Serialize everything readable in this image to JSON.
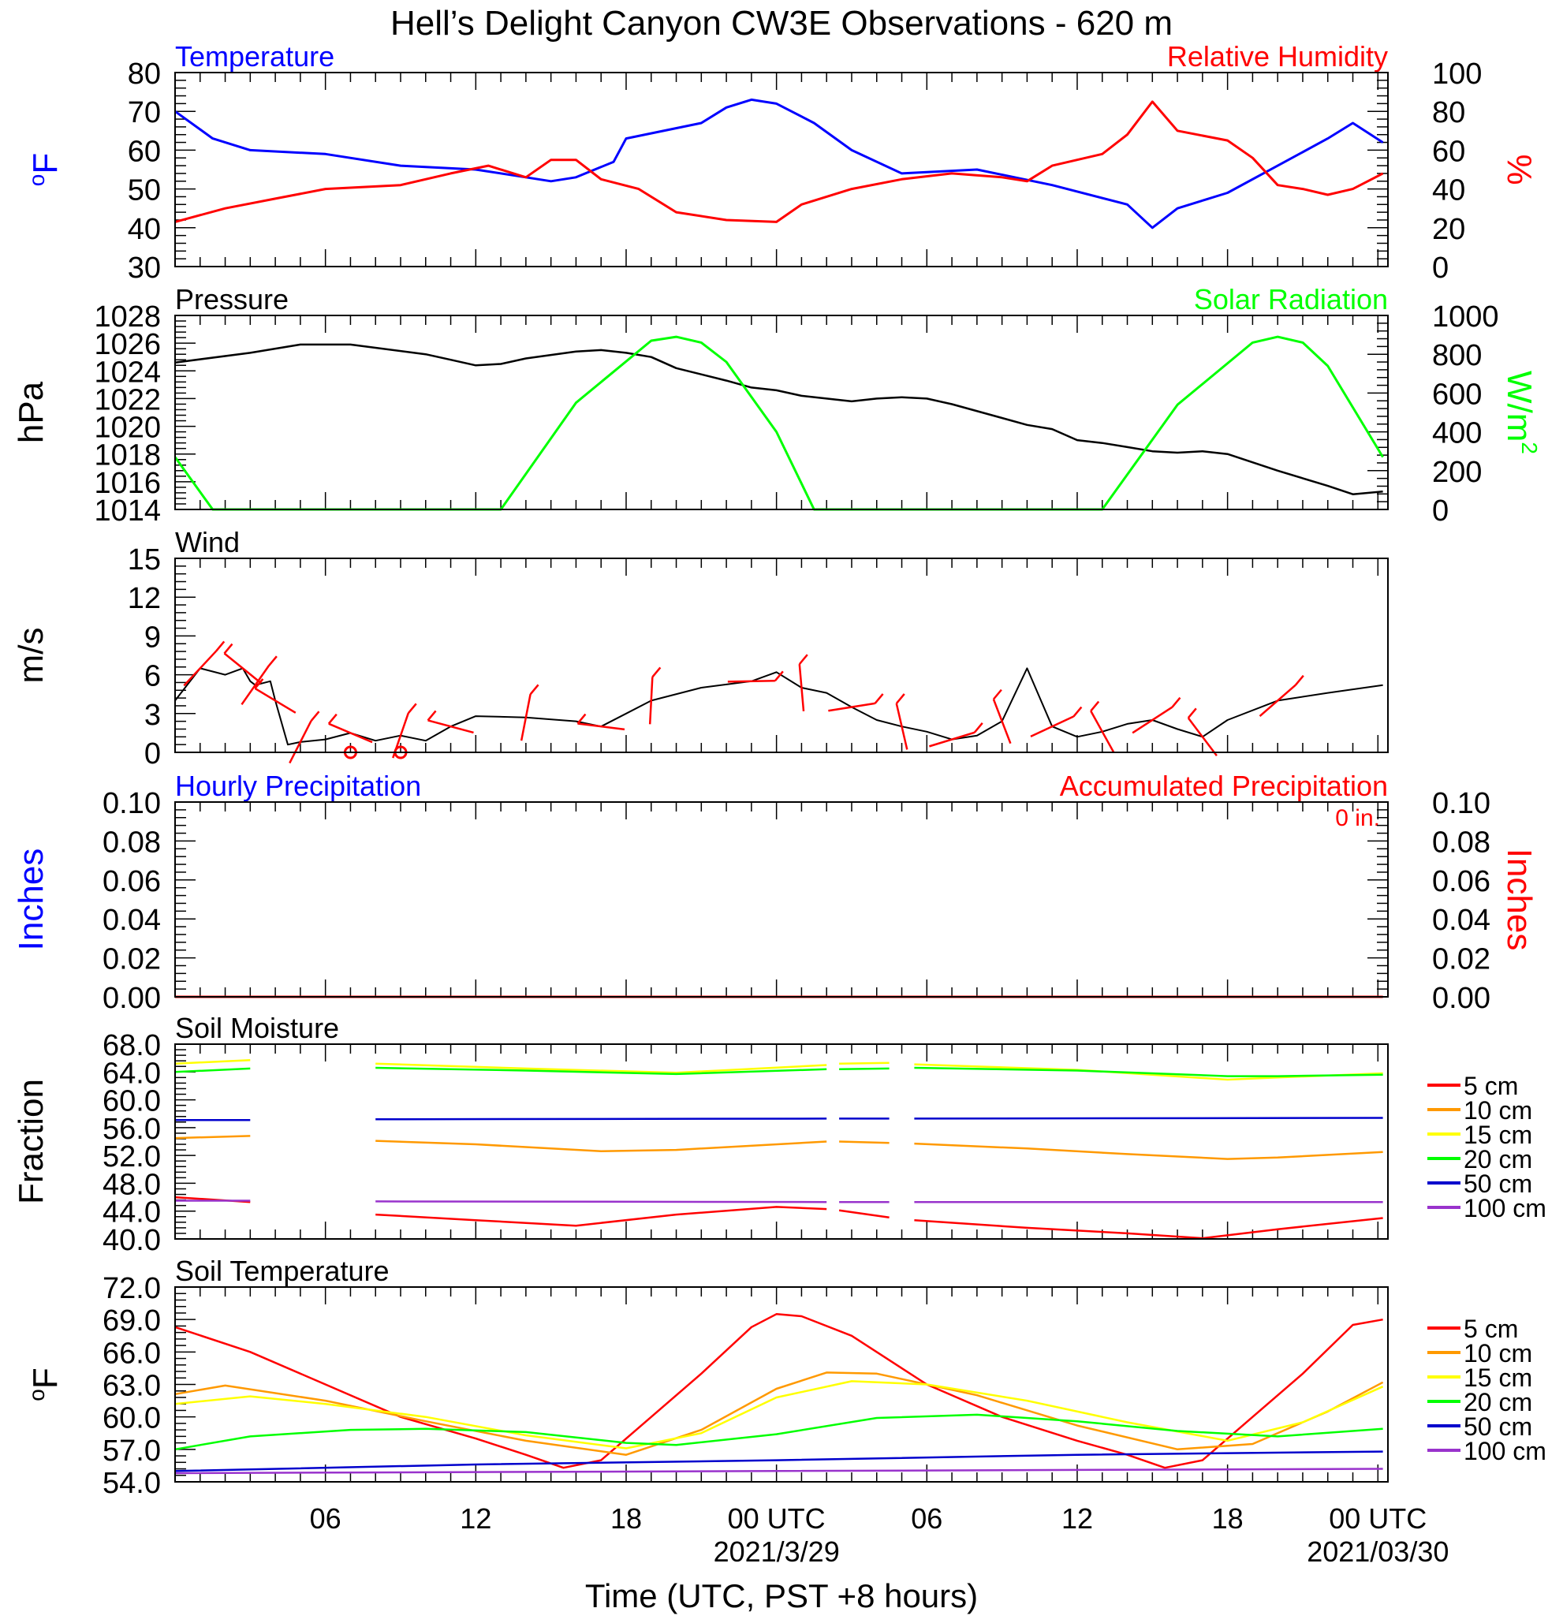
{
  "title": "Hell’s Delight Canyon CW3E Observations - 620 m",
  "xlabel": "Time (UTC, PST +8 hours)",
  "x_ticks": [
    {
      "hour": 6,
      "label": "06",
      "date": ""
    },
    {
      "hour": 12,
      "label": "12",
      "date": ""
    },
    {
      "hour": 18,
      "label": "18",
      "date": ""
    },
    {
      "hour": 24,
      "label": "00 UTC",
      "date": "2021/3/29"
    },
    {
      "hour": 30,
      "label": "06",
      "date": ""
    },
    {
      "hour": 36,
      "label": "12",
      "date": ""
    },
    {
      "hour": 42,
      "label": "18",
      "date": ""
    },
    {
      "hour": 48,
      "label": "00 UTC",
      "date": "2021/03/30"
    }
  ],
  "x_range_hours": [
    0,
    48.4
  ],
  "colors": {
    "temp": "#0000ff",
    "rh": "#ff0000",
    "pressure": "#000000",
    "solar": "#00ff00",
    "wind": "#000000",
    "barb": "#ff0000",
    "depths": [
      "#ff0000",
      "#ff9900",
      "#ffff00",
      "#00ff00",
      "#0000cc",
      "#9933cc"
    ]
  },
  "depth_labels": [
    "5 cm",
    "10 cm",
    "15 cm",
    "20 cm",
    "50 cm",
    "100 cm"
  ],
  "chart_data": [
    {
      "type": "line",
      "left_title": "Temperature",
      "right_title": "Relative Humidity",
      "ylabel": "oF",
      "ylabel_right": "%",
      "ylim": [
        30,
        80
      ],
      "ylim_right": [
        0,
        100
      ],
      "yticks": [
        "30",
        "40",
        "50",
        "60",
        "70",
        "80"
      ],
      "yticks_right": [
        "0",
        "20",
        "40",
        "60",
        "80",
        "100"
      ],
      "series": [
        {
          "name": "Temperature",
          "x": [
            0,
            1.5,
            3,
            6,
            9,
            12,
            14,
            15,
            16,
            17.5,
            18,
            21,
            22,
            23,
            24,
            25.5,
            27,
            29,
            32,
            33.5,
            35,
            38,
            39,
            40,
            42,
            44,
            46,
            47,
            48.2
          ],
          "y": [
            70,
            63,
            60,
            59,
            56,
            55,
            53,
            52,
            53,
            57,
            63,
            67,
            71,
            73,
            72,
            67,
            60,
            54,
            55,
            53,
            51,
            46,
            40,
            45,
            49,
            56,
            63,
            67,
            62
          ]
        },
        {
          "name": "Relative Humidity",
          "x": [
            0,
            2,
            4,
            6,
            9,
            11,
            12.5,
            14,
            15,
            16,
            17,
            18.5,
            20,
            22,
            24,
            25,
            27,
            29,
            31,
            33,
            34,
            35,
            37,
            38,
            39,
            40,
            42,
            43,
            44,
            45,
            46,
            47,
            48.2
          ],
          "y": [
            23,
            30,
            35,
            40,
            42,
            48,
            52,
            46,
            55,
            55,
            45,
            40,
            28,
            24,
            23,
            32,
            40,
            45,
            48,
            46,
            44,
            52,
            58,
            68,
            85,
            70,
            65,
            56,
            42,
            40,
            37,
            40,
            48
          ]
        }
      ]
    },
    {
      "type": "line",
      "left_title": "Pressure",
      "right_title": "Solar Radiation",
      "ylabel": "hPa",
      "ylabel_right": "W/m",
      "ylabel_right_sup": "2",
      "ylim": [
        1014,
        1028
      ],
      "ylim_right": [
        0,
        1000
      ],
      "yticks": [
        "1014",
        "1016",
        "1018",
        "1020",
        "1022",
        "1024",
        "1026",
        "1028"
      ],
      "yticks_right": [
        "0",
        "200",
        "400",
        "600",
        "800",
        "1000"
      ],
      "series": [
        {
          "name": "Pressure",
          "x": [
            0,
            3,
            5,
            7,
            10,
            11,
            12,
            13,
            14,
            16,
            17,
            18,
            19,
            20,
            22,
            23,
            24,
            25,
            26,
            27,
            28,
            29,
            30,
            31,
            33,
            34,
            35,
            36,
            37,
            38,
            39,
            40,
            41,
            42,
            44,
            46,
            47,
            48.2
          ],
          "y": [
            1024.6,
            1025.3,
            1025.9,
            1025.9,
            1025.2,
            1024.8,
            1024.4,
            1024.5,
            1024.9,
            1025.4,
            1025.5,
            1025.3,
            1025,
            1024.2,
            1023.3,
            1022.8,
            1022.6,
            1022.2,
            1022.0,
            1021.8,
            1022.0,
            1022.1,
            1022.0,
            1021.6,
            1020.6,
            1020.1,
            1019.8,
            1019.0,
            1018.8,
            1018.5,
            1018.2,
            1018.1,
            1018.2,
            1018.0,
            1016.8,
            1015.7,
            1015.1,
            1015.3
          ]
        },
        {
          "name": "Solar Radiation",
          "x": [
            0,
            1.5,
            13,
            16,
            19,
            20,
            21,
            22,
            24,
            25.5,
            37,
            40,
            43,
            44,
            45,
            46,
            48.2
          ],
          "y": [
            270,
            0,
            0,
            550,
            870,
            890,
            860,
            760,
            400,
            0,
            0,
            540,
            860,
            890,
            860,
            740,
            270
          ]
        }
      ]
    },
    {
      "type": "line",
      "left_title": "Wind",
      "ylabel": "m/s",
      "ylim": [
        0,
        15
      ],
      "yticks": [
        "0",
        "3",
        "6",
        "9",
        "12",
        "15"
      ],
      "series": [
        {
          "name": "Wind",
          "x": [
            0,
            1,
            2,
            2.7,
            3,
            3.2,
            3.8,
            4,
            4.5,
            5,
            6,
            7,
            8,
            9,
            10,
            11,
            12,
            14,
            16,
            17,
            18,
            19,
            21,
            23,
            24,
            25,
            26,
            27,
            28,
            29,
            30,
            31,
            32,
            33,
            34,
            35,
            36,
            37,
            38,
            39,
            40,
            41,
            42,
            44,
            46,
            48.2
          ],
          "y": [
            4,
            6.5,
            6,
            6.5,
            5.5,
            5.2,
            5.5,
            4,
            0.6,
            0.8,
            1,
            1.5,
            0.9,
            1.3,
            0.9,
            2,
            2.8,
            2.7,
            2.4,
            2,
            3,
            4,
            5,
            5.5,
            6.2,
            5,
            4.6,
            3.5,
            2.5,
            2,
            1.6,
            1,
            1.3,
            2.4,
            6.5,
            2,
            1.2,
            1.6,
            2.2,
            2.5,
            1.8,
            1.2,
            2.5,
            4,
            4.6,
            5.2
          ]
        },
        {
          "name": "Calm",
          "x": [
            7.0,
            9.0
          ],
          "y": [
            0,
            0
          ]
        }
      ]
    },
    {
      "type": "bar",
      "left_title": "Hourly Precipitation",
      "right_title": "Accumulated Precipitation",
      "annotation": "0 in.",
      "ylabel": "Inches",
      "ylabel_right": "Inches",
      "ylim": [
        0,
        0.1
      ],
      "yticks": [
        "0.00",
        "0.02",
        "0.04",
        "0.06",
        "0.08",
        "0.10"
      ],
      "yticks_right": [
        "0.00",
        "0.02",
        "0.04",
        "0.06",
        "0.08",
        "0.10"
      ],
      "series": [
        {
          "name": "Hourly Precipitation",
          "x": [
            0,
            48.2
          ],
          "y": [
            0,
            0
          ]
        },
        {
          "name": "Accumulated Precipitation",
          "x": [
            0,
            48.2
          ],
          "y": [
            0,
            0
          ]
        }
      ]
    },
    {
      "type": "line",
      "left_title": "Soil Moisture",
      "ylabel": "Fraction",
      "ylim": [
        40,
        68
      ],
      "yticks": [
        "40.0",
        "44.0",
        "48.0",
        "52.0",
        "56.0",
        "60.0",
        "64.0",
        "68.0"
      ],
      "segments": [
        [
          0,
          3.0
        ],
        [
          8.0,
          26.0
        ],
        [
          26.5,
          28.5
        ],
        [
          29.5,
          48.2
        ]
      ],
      "series": [
        {
          "name": "5 cm",
          "x": [
            0,
            3,
            8,
            12,
            16,
            20,
            24,
            26,
            26.5,
            28.5,
            29.5,
            34,
            38,
            41,
            44,
            48.2
          ],
          "y": [
            46,
            45.3,
            43.5,
            42.7,
            41.9,
            43.5,
            44.6,
            44.3,
            44.1,
            43.1,
            42.7,
            41.6,
            40.8,
            40.1,
            41.4,
            43
          ]
        },
        {
          "name": "10 cm",
          "x": [
            0,
            3,
            8,
            12,
            17,
            20,
            26,
            26.5,
            28.5,
            29.5,
            34,
            38,
            42,
            44,
            48.2
          ],
          "y": [
            54.5,
            54.8,
            54.1,
            53.6,
            52.6,
            52.8,
            54.0,
            54.0,
            53.8,
            53.7,
            53.0,
            52.2,
            51.5,
            51.7,
            52.5
          ]
        },
        {
          "name": "15 cm",
          "x": [
            0,
            3,
            8,
            14,
            20,
            26,
            26.5,
            28.5,
            29.5,
            36,
            42,
            44,
            48.2
          ],
          "y": [
            65.2,
            65.7,
            65.2,
            64.5,
            63.9,
            65.0,
            65.2,
            65.3,
            65.1,
            64.3,
            62.9,
            63.2,
            63.8
          ]
        },
        {
          "name": "20 cm",
          "x": [
            0,
            3,
            8,
            14,
            20,
            26,
            26.5,
            28.5,
            29.5,
            36,
            42,
            44,
            48.2
          ],
          "y": [
            64.0,
            64.5,
            64.6,
            64.2,
            63.7,
            64.4,
            64.4,
            64.5,
            64.6,
            64.2,
            63.4,
            63.4,
            63.6
          ]
        },
        {
          "name": "50 cm",
          "x": [
            0,
            3,
            8,
            26,
            26.5,
            28.5,
            29.5,
            48.2
          ],
          "y": [
            57.1,
            57.1,
            57.2,
            57.3,
            57.3,
            57.3,
            57.3,
            57.4
          ]
        },
        {
          "name": "100 cm",
          "x": [
            0,
            3,
            8,
            26,
            26.5,
            28.5,
            29.5,
            48.2
          ],
          "y": [
            45.5,
            45.5,
            45.4,
            45.3,
            45.3,
            45.3,
            45.3,
            45.3
          ]
        }
      ]
    },
    {
      "type": "line",
      "left_title": "Soil Temperature",
      "ylabel": "oF",
      "ylim": [
        54,
        72
      ],
      "yticks": [
        "54.0",
        "57.0",
        "60.0",
        "63.0",
        "66.0",
        "69.0",
        "72.0"
      ],
      "series": [
        {
          "name": "5 cm",
          "x": [
            0,
            3,
            6,
            9,
            12,
            14,
            15.5,
            17,
            19,
            21,
            23,
            24,
            25,
            27,
            30,
            33,
            36,
            38,
            39.5,
            41,
            43,
            45,
            47,
            48.2
          ],
          "y": [
            68.3,
            66,
            63,
            60,
            58,
            56.5,
            55.3,
            56,
            60,
            64,
            68.3,
            69.5,
            69.3,
            67.5,
            63,
            60,
            57.8,
            56.5,
            55.3,
            56,
            60,
            64,
            68.5,
            69
          ]
        },
        {
          "name": "10 cm",
          "x": [
            0,
            2,
            6,
            10,
            14,
            18,
            21,
            24,
            26,
            28,
            32,
            36,
            40,
            43,
            46,
            48.2
          ],
          "y": [
            62.1,
            62.9,
            61.5,
            59.6,
            57.8,
            56.5,
            58.8,
            62.6,
            64.1,
            64,
            62,
            59.2,
            57,
            57.5,
            60.5,
            63.2
          ]
        },
        {
          "name": "15 cm",
          "x": [
            0,
            3,
            6,
            10,
            14,
            18,
            21,
            24,
            27,
            30,
            34,
            38,
            42,
            45,
            48.2
          ],
          "y": [
            61.2,
            61.9,
            61.2,
            60,
            58.3,
            57.1,
            58.5,
            61.8,
            63.3,
            63,
            61.5,
            59.5,
            57.8,
            59.5,
            62.8
          ]
        },
        {
          "name": "20 cm",
          "x": [
            0,
            3,
            7,
            10,
            14,
            18,
            20,
            24,
            28,
            32,
            36,
            40,
            44,
            48.2
          ],
          "y": [
            57,
            58.2,
            58.8,
            58.9,
            58.6,
            57.6,
            57.4,
            58.4,
            59.9,
            60.2,
            59.6,
            58.7,
            58.2,
            58.9
          ]
        },
        {
          "name": "50 cm",
          "x": [
            0,
            12,
            24,
            36,
            48.2
          ],
          "y": [
            55.0,
            55.6,
            56.0,
            56.5,
            56.8
          ]
        },
        {
          "name": "100 cm",
          "x": [
            0,
            24,
            48.2
          ],
          "y": [
            54.8,
            55.0,
            55.2
          ]
        }
      ]
    }
  ]
}
